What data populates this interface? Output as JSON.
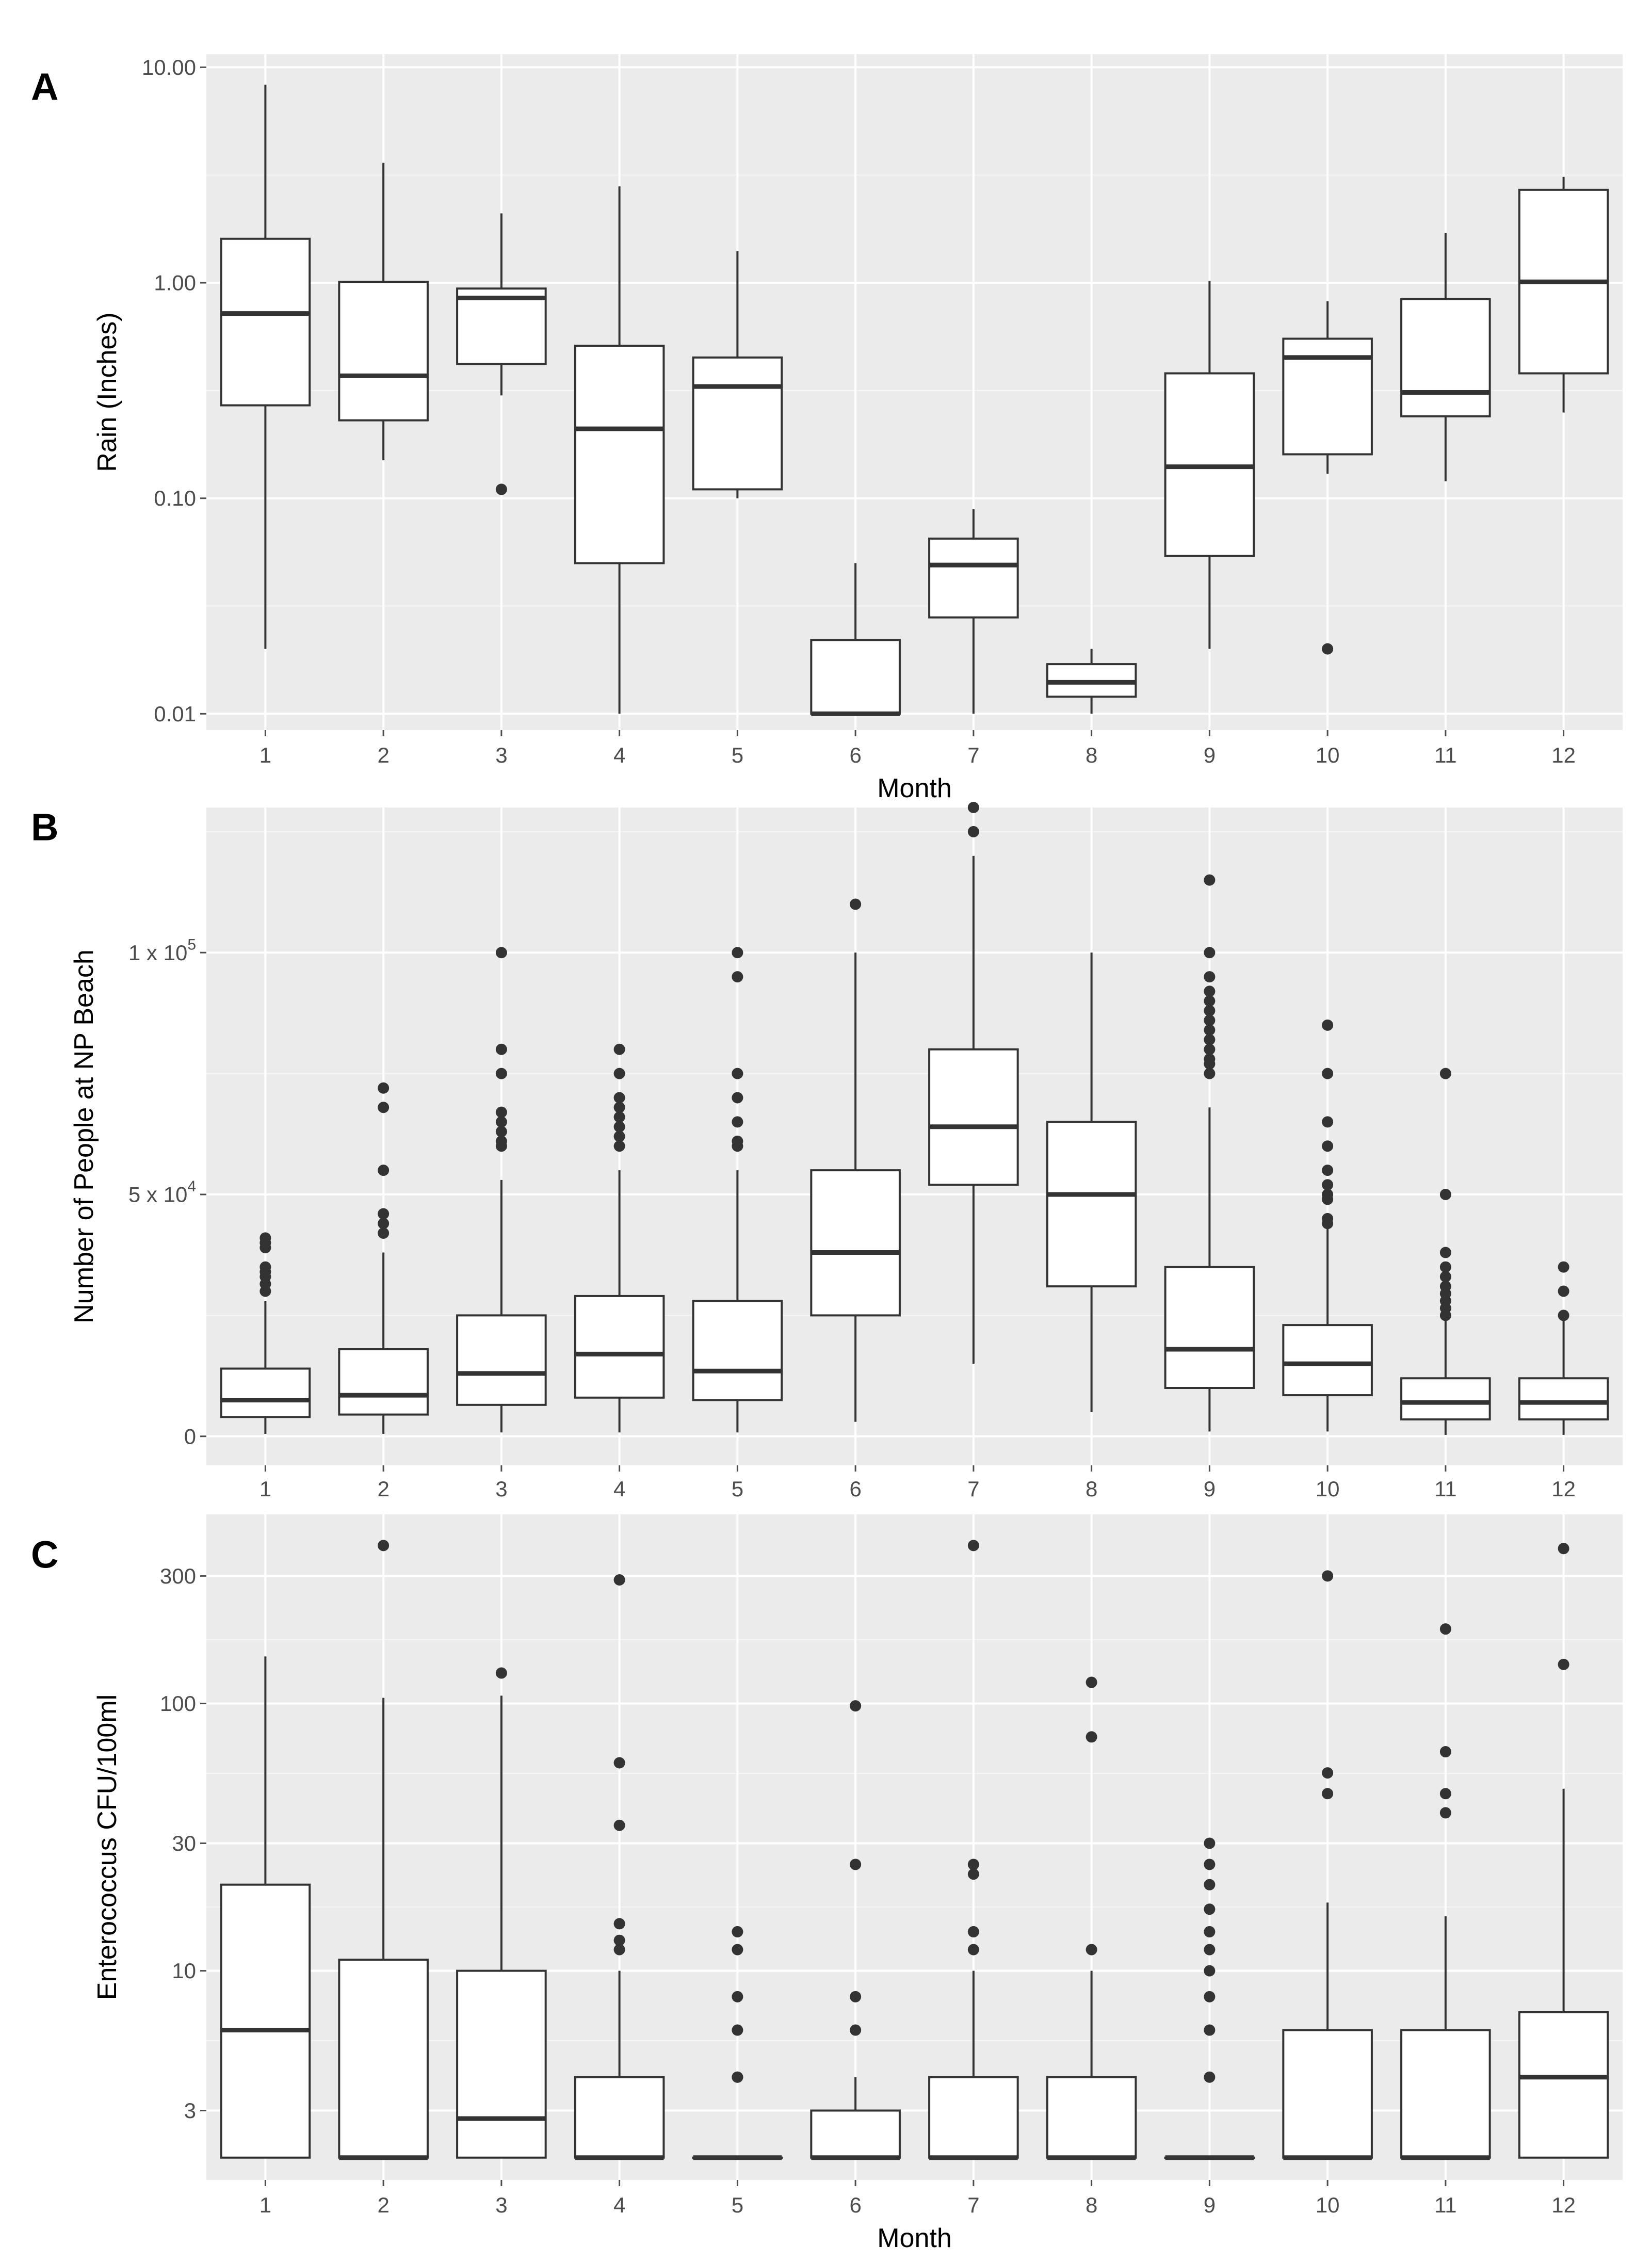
{
  "figure": {
    "panels": [
      "A",
      "B",
      "C"
    ]
  },
  "colors": {
    "panel_bg": "#EBEBEB",
    "grid_major": "#FFFFFF",
    "grid_minor": "#F5F5F5",
    "box_fill": "#FFFFFF",
    "box_line": "#333333",
    "tick_text": "#4D4D4D",
    "outlier": "#333333"
  },
  "chart_data": [
    {
      "panel": "A",
      "type": "boxplot",
      "scale": "log10",
      "categories": [
        "1",
        "2",
        "3",
        "4",
        "5",
        "6",
        "7",
        "8",
        "9",
        "10",
        "11",
        "12"
      ],
      "xlabel": "Month",
      "ylabel": "Rain (Inches)",
      "ylim": [
        0.0084,
        11.5
      ],
      "yticks": [
        0.01,
        0.1,
        1,
        10
      ],
      "ytick_labels": [
        "0.01",
        "0.10",
        "1.00",
        "10.00"
      ],
      "boxes": [
        {
          "min": 0.02,
          "q1": 0.27,
          "median": 0.72,
          "q3": 1.6,
          "max": 8.3,
          "outliers": []
        },
        {
          "min": 0.15,
          "q1": 0.23,
          "median": 0.37,
          "q3": 1.01,
          "max": 3.6,
          "outliers": []
        },
        {
          "min": 0.3,
          "q1": 0.42,
          "median": 0.85,
          "q3": 0.94,
          "max": 2.1,
          "outliers": [
            0.11
          ]
        },
        {
          "min": 0.01,
          "q1": 0.05,
          "median": 0.21,
          "q3": 0.51,
          "max": 2.8,
          "outliers": []
        },
        {
          "min": 0.1,
          "q1": 0.11,
          "median": 0.33,
          "q3": 0.45,
          "max": 1.4,
          "outliers": []
        },
        {
          "min": 0.01,
          "q1": 0.01,
          "median": 0.01,
          "q3": 0.022,
          "max": 0.05,
          "outliers": []
        },
        {
          "min": 0.01,
          "q1": 0.028,
          "median": 0.049,
          "q3": 0.065,
          "max": 0.089,
          "outliers": []
        },
        {
          "min": 0.01,
          "q1": 0.012,
          "median": 0.014,
          "q3": 0.017,
          "max": 0.02,
          "outliers": []
        },
        {
          "min": 0.02,
          "q1": 0.054,
          "median": 0.14,
          "q3": 0.38,
          "max": 1.02,
          "outliers": []
        },
        {
          "min": 0.13,
          "q1": 0.16,
          "median": 0.45,
          "q3": 0.55,
          "max": 0.82,
          "outliers": [
            0.02
          ]
        },
        {
          "min": 0.12,
          "q1": 0.24,
          "median": 0.31,
          "q3": 0.84,
          "max": 1.7,
          "outliers": []
        },
        {
          "min": 0.25,
          "q1": 0.38,
          "median": 1.01,
          "q3": 2.7,
          "max": 3.1,
          "outliers": []
        }
      ]
    },
    {
      "panel": "B",
      "type": "boxplot",
      "scale": "linear",
      "categories": [
        "1",
        "2",
        "3",
        "4",
        "5",
        "6",
        "7",
        "8",
        "9",
        "10",
        "11",
        "12"
      ],
      "xlabel": "",
      "ylabel": "Number of People at NP Beach",
      "ylim": [
        -6000,
        130000
      ],
      "yticks": [
        0,
        50000,
        100000
      ],
      "ytick_labels": [
        "0",
        "5 x 10",
        "1 x 10"
      ],
      "ytick_exponents": [
        "",
        "4",
        "5"
      ],
      "boxes": [
        {
          "min": 500,
          "q1": 4000,
          "median": 7500,
          "q3": 14000,
          "max": 28000,
          "outliers": [
            30000,
            31500,
            33000,
            34000,
            35000,
            39000,
            40000,
            41000
          ]
        },
        {
          "min": 500,
          "q1": 4500,
          "median": 8500,
          "q3": 18000,
          "max": 38000,
          "outliers": [
            42000,
            44000,
            46000,
            55000,
            68000,
            72000
          ]
        },
        {
          "min": 800,
          "q1": 6500,
          "median": 13000,
          "q3": 25000,
          "max": 53000,
          "outliers": [
            60000,
            61000,
            63000,
            65000,
            67000,
            75000,
            80000,
            100000
          ]
        },
        {
          "min": 800,
          "q1": 8000,
          "median": 17000,
          "q3": 29000,
          "max": 55000,
          "outliers": [
            60000,
            62000,
            64000,
            66000,
            68000,
            70000,
            75000,
            80000
          ]
        },
        {
          "min": 800,
          "q1": 7500,
          "median": 13500,
          "q3": 28000,
          "max": 55000,
          "outliers": [
            60000,
            61000,
            65000,
            70000,
            75000,
            95000,
            100000
          ]
        },
        {
          "min": 3000,
          "q1": 25000,
          "median": 38000,
          "q3": 55000,
          "max": 100000,
          "outliers": [
            110000
          ]
        },
        {
          "min": 15000,
          "q1": 52000,
          "median": 64000,
          "q3": 80000,
          "max": 120000,
          "outliers": [
            125000,
            130000
          ]
        },
        {
          "min": 5000,
          "q1": 31000,
          "median": 50000,
          "q3": 65000,
          "max": 100000,
          "outliers": []
        },
        {
          "min": 1000,
          "q1": 10000,
          "median": 18000,
          "q3": 35000,
          "max": 68000,
          "outliers": [
            75000,
            77000,
            78000,
            80000,
            82000,
            84000,
            86000,
            88000,
            90000,
            92000,
            95000,
            100000,
            115000
          ]
        },
        {
          "min": 1000,
          "q1": 8500,
          "median": 15000,
          "q3": 23000,
          "max": 43000,
          "outliers": [
            44000,
            45000,
            49000,
            50000,
            52000,
            55000,
            60000,
            65000,
            75000,
            85000
          ]
        },
        {
          "min": 300,
          "q1": 3500,
          "median": 7000,
          "q3": 12000,
          "max": 24000,
          "outliers": [
            25000,
            26500,
            28000,
            29500,
            31000,
            33000,
            35000,
            38000,
            50000,
            75000
          ]
        },
        {
          "min": 300,
          "q1": 3500,
          "median": 7000,
          "q3": 12000,
          "max": 24000,
          "outliers": [
            25000,
            30000,
            35000
          ]
        }
      ]
    },
    {
      "panel": "C",
      "type": "boxplot",
      "scale": "log10",
      "categories": [
        "1",
        "2",
        "3",
        "4",
        "5",
        "6",
        "7",
        "8",
        "9",
        "10",
        "11",
        "12"
      ],
      "xlabel": "Month",
      "ylabel": "Enterococcus CFU/100ml",
      "ylim": [
        1.65,
        510
      ],
      "yticks": [
        3,
        10,
        30,
        100,
        300
      ],
      "ytick_labels": [
        "3",
        "10",
        "30",
        "100",
        "300"
      ],
      "boxes": [
        {
          "min": 2,
          "q1": 2,
          "median": 6,
          "q3": 21,
          "max": 150,
          "outliers": []
        },
        {
          "min": 2,
          "q1": 2,
          "median": 2,
          "q3": 11,
          "max": 105,
          "outliers": [
            390
          ]
        },
        {
          "min": 2,
          "q1": 2,
          "median": 2.8,
          "q3": 10,
          "max": 107,
          "outliers": [
            130
          ]
        },
        {
          "min": 2,
          "q1": 2,
          "median": 2,
          "q3": 4,
          "max": 10,
          "outliers": [
            12,
            13,
            15,
            35,
            60,
            290
          ]
        },
        {
          "min": 2,
          "q1": 2,
          "median": 2,
          "q3": 2,
          "max": 2,
          "outliers": [
            4,
            4,
            6,
            8,
            12,
            14
          ]
        },
        {
          "min": 2,
          "q1": 2,
          "median": 2,
          "q3": 3,
          "max": 4,
          "outliers": [
            6,
            8,
            25,
            98
          ]
        },
        {
          "min": 2,
          "q1": 2,
          "median": 2,
          "q3": 4,
          "max": 10,
          "outliers": [
            12,
            14,
            23,
            25,
            390
          ]
        },
        {
          "min": 2,
          "q1": 2,
          "median": 2,
          "q3": 4,
          "max": 10,
          "outliers": [
            12,
            75,
            120
          ]
        },
        {
          "min": 2,
          "q1": 2,
          "median": 2,
          "q3": 2,
          "max": 2,
          "outliers": [
            4,
            6,
            8,
            10,
            12,
            14,
            17,
            21,
            25,
            30
          ]
        },
        {
          "min": 2,
          "q1": 2,
          "median": 2,
          "q3": 6,
          "max": 18,
          "outliers": [
            46,
            55,
            300
          ]
        },
        {
          "min": 2,
          "q1": 2,
          "median": 2,
          "q3": 6,
          "max": 16,
          "outliers": [
            39,
            46,
            66,
            190
          ]
        },
        {
          "min": 2,
          "q1": 2,
          "median": 4,
          "q3": 7,
          "max": 48,
          "outliers": [
            140,
            380
          ]
        }
      ]
    }
  ]
}
